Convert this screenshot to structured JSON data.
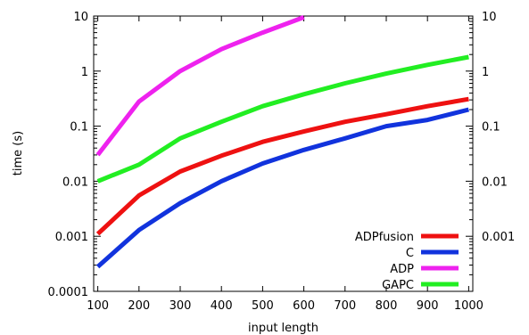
{
  "chart_data": {
    "type": "line",
    "xlabel": "input length",
    "ylabel": "time (s)",
    "y_scale": "log",
    "xlim": [
      90,
      1010
    ],
    "ylim": [
      0.0001,
      10
    ],
    "x_ticks": [
      "100",
      "200",
      "300",
      "400",
      "500",
      "600",
      "700",
      "800",
      "900",
      "1000"
    ],
    "y_ticks": [
      "0.0001",
      "0.001",
      "0.01",
      "0.1",
      "1",
      "10"
    ],
    "right_y_ticks": [
      "0.001",
      "0.01",
      "0.1",
      "1",
      "10"
    ],
    "grid": false,
    "legend_position": "bottom-right",
    "series": [
      {
        "name": "ADPfusion",
        "color": "#ee1111",
        "x": [
          100,
          200,
          300,
          400,
          500,
          600,
          700,
          800,
          900,
          1000
        ],
        "y": [
          0.0011,
          0.0055,
          0.015,
          0.029,
          0.052,
          0.08,
          0.12,
          0.165,
          0.23,
          0.31
        ]
      },
      {
        "name": "C",
        "color": "#1133dd",
        "x": [
          100,
          200,
          300,
          400,
          500,
          600,
          700,
          800,
          900,
          1000
        ],
        "y": [
          0.00028,
          0.0013,
          0.004,
          0.01,
          0.021,
          0.037,
          0.06,
          0.1,
          0.13,
          0.2
        ]
      },
      {
        "name": "ADP",
        "color": "#ee22ee",
        "x": [
          100,
          200,
          300,
          400,
          500,
          600
        ],
        "y": [
          0.03,
          0.28,
          1.0,
          2.5,
          5.0,
          9.5
        ]
      },
      {
        "name": "GAPC",
        "color": "#22ee22",
        "x": [
          100,
          200,
          300,
          400,
          500,
          600,
          700,
          800,
          900,
          1000
        ],
        "y": [
          0.01,
          0.02,
          0.06,
          0.12,
          0.23,
          0.38,
          0.6,
          0.9,
          1.3,
          1.8
        ]
      }
    ]
  }
}
